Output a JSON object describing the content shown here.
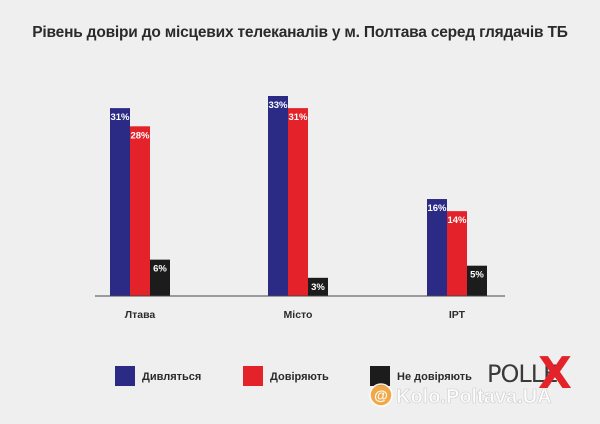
{
  "chart_data": {
    "type": "bar",
    "title": "Рівень довіри до місцевих телеканалів у м. Полтава серед глядачів ТБ",
    "categories": [
      "Лтава",
      "Місто",
      "ІРТ"
    ],
    "series": [
      {
        "name": "Дивляться",
        "color": "#2b2b86",
        "values": [
          31,
          33,
          16
        ],
        "labels": [
          "31%",
          "33%",
          "16%"
        ]
      },
      {
        "name": "Довіряють",
        "color": "#e3222a",
        "values": [
          28,
          31,
          14
        ],
        "labels": [
          "28%",
          "31%",
          "14%"
        ]
      },
      {
        "name": "Не довіряють",
        "color": "#1c1c1c",
        "values": [
          6,
          3,
          5
        ],
        "labels": [
          "6%",
          "3%",
          "5%"
        ]
      }
    ],
    "ylim": [
      0,
      33
    ],
    "grid": false,
    "legend_position": "bottom"
  },
  "branding": {
    "logo_text": "POLLE",
    "logo_mark": "X",
    "watermark": "Kolo.Poltava.UA",
    "watermark_symbol": "@"
  }
}
